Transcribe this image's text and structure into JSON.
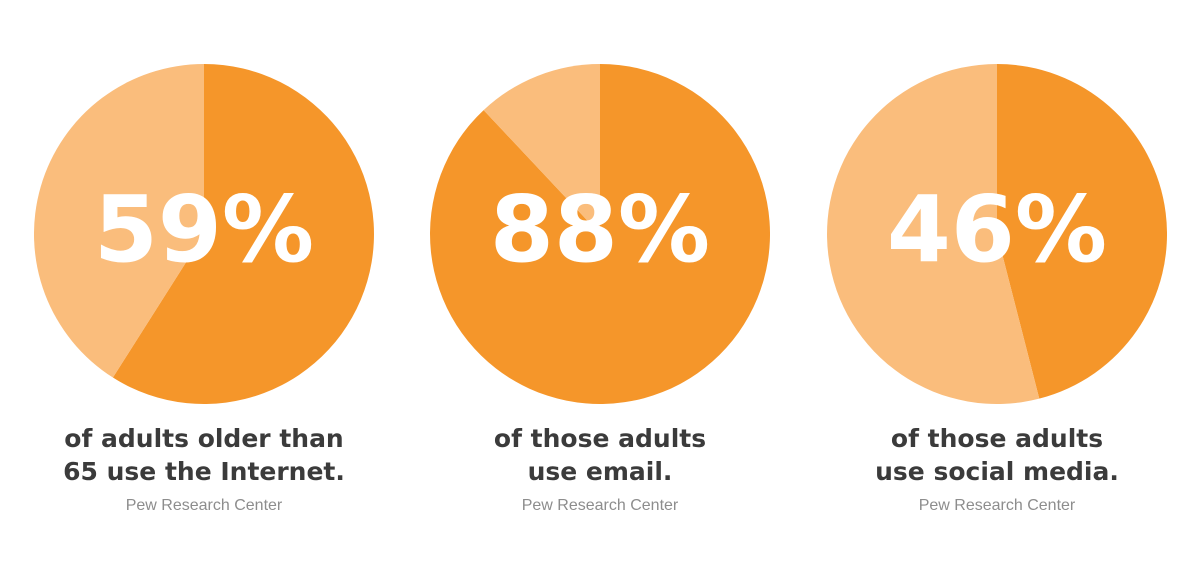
{
  "colors": {
    "primary": "#F5962A",
    "secondary": "#FABD7C",
    "text": "#3B3B3B",
    "source": "#8D8D8D"
  },
  "stats": [
    {
      "percent_label": "59%",
      "caption_line1": "of adults older than",
      "caption_line2": "65 use the Internet.",
      "source": "Pew Research Center"
    },
    {
      "percent_label": "88%",
      "caption_line1": "of those adults",
      "caption_line2": "use email.",
      "source": "Pew Research Center"
    },
    {
      "percent_label": "46%",
      "caption_line1": "of those adults",
      "caption_line2": "use social media.",
      "source": "Pew Research Center"
    }
  ],
  "chart_data": [
    {
      "type": "pie",
      "values": [
        59,
        41
      ]
    },
    {
      "type": "pie",
      "values": [
        88,
        12
      ]
    },
    {
      "type": "pie",
      "values": [
        46,
        54
      ]
    }
  ]
}
